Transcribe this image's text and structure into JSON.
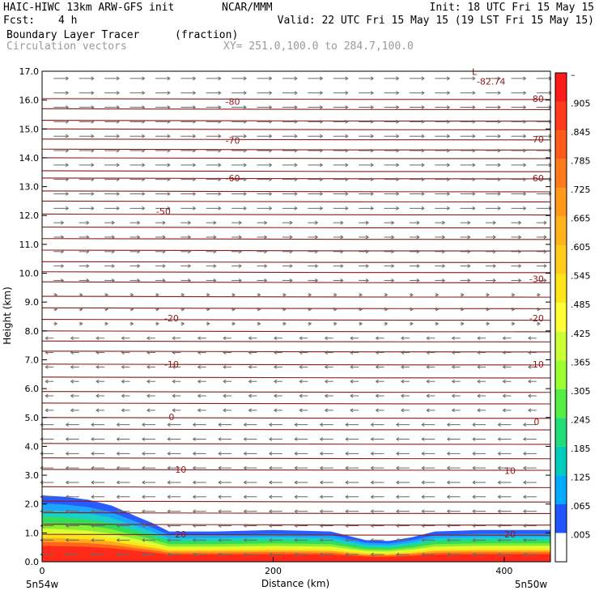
{
  "header": {
    "model": "HAIC-HIWC 13km ARW-GFS init",
    "org": "NCAR/MMM",
    "init": "Init: 18 UTC Fri 15 May 15",
    "fcst_label": "Fcst:",
    "fcst_value": "4 h",
    "valid": "Valid: 22 UTC Fri 15 May 15 (19 LST Fri 15 May 15)",
    "field": "Boundary Layer Tracer",
    "field_units": "(fraction)",
    "vectors": "Circulation vectors",
    "xy": "XY= 251.0,100.0 to 284.7,100.0"
  },
  "chart_data": {
    "type": "heatmap",
    "ylabel": "Height (km)",
    "xlabel": "Distance (km)",
    "ylim": [
      0,
      17
    ],
    "xlim": [
      0,
      440
    ],
    "yticks": [
      "0.0",
      "1.0",
      "2.0",
      "3.0",
      "4.0",
      "5.0",
      "6.0",
      "7.0",
      "8.0",
      "9.0",
      "10.0",
      "11.0",
      "12.0",
      "13.0",
      "14.0",
      "15.0",
      "16.0",
      "17.0"
    ],
    "xticks": [
      0,
      200,
      400
    ],
    "x_end_labels": {
      "left": "5n54w",
      "right": "5n50w"
    },
    "colorbar": {
      "labels": [
        "–",
        ".905",
        ".845",
        ".785",
        ".725",
        ".665",
        ".605",
        ".545",
        ".485",
        ".425",
        ".365",
        ".305",
        ".245",
        ".185",
        ".125",
        ".065",
        ".005"
      ],
      "colors": [
        "#ff1a1a",
        "#ff3b1a",
        "#ff5a1a",
        "#ff7a1a",
        "#ff991a",
        "#ffb31a",
        "#ffcc1a",
        "#ffe61a",
        "#ffff33",
        "#ccff33",
        "#99ff33",
        "#55ee44",
        "#22dd77",
        "#00ccbb",
        "#00aaff",
        "#2255ff",
        "#ffffff"
      ]
    },
    "temperature_contours": {
      "line_color": "#8b1a1a",
      "labels": [
        {
          "value": "-80",
          "x": 165,
          "y": 15.95
        },
        {
          "value": "-80",
          "x": 428,
          "y": 16.05
        },
        {
          "value": "-70",
          "x": 165,
          "y": 14.6
        },
        {
          "value": "-70",
          "x": 428,
          "y": 14.65
        },
        {
          "value": "-60",
          "x": 165,
          "y": 13.3
        },
        {
          "value": "-60",
          "x": 428,
          "y": 13.3
        },
        {
          "value": "-50",
          "x": 105,
          "y": 12.15
        },
        {
          "value": "-30",
          "x": 428,
          "y": 9.8
        },
        {
          "value": "-20",
          "x": 112,
          "y": 8.45
        },
        {
          "value": "-20",
          "x": 428,
          "y": 8.45
        },
        {
          "value": "-10",
          "x": 112,
          "y": 6.85
        },
        {
          "value": "-10",
          "x": 428,
          "y": 6.85
        },
        {
          "value": "0",
          "x": 112,
          "y": 5.02
        },
        {
          "value": "0",
          "x": 428,
          "y": 4.85
        },
        {
          "value": "10",
          "x": 120,
          "y": 3.2
        },
        {
          "value": "10",
          "x": 405,
          "y": 3.15
        },
        {
          "value": "20",
          "x": 120,
          "y": 0.95
        },
        {
          "value": "20",
          "x": 405,
          "y": 0.95
        }
      ],
      "min_label": {
        "value": "-82.74",
        "x": 372,
        "y": 16.65,
        "symbol": "L"
      }
    },
    "tracer_top_km": [
      [
        0,
        2.3
      ],
      [
        20,
        2.25
      ],
      [
        40,
        2.15
      ],
      [
        60,
        1.95
      ],
      [
        80,
        1.6
      ],
      [
        95,
        1.35
      ],
      [
        110,
        1.05
      ],
      [
        150,
        1.05
      ],
      [
        200,
        1.1
      ],
      [
        250,
        1.05
      ],
      [
        280,
        0.75
      ],
      [
        300,
        0.72
      ],
      [
        320,
        0.85
      ],
      [
        340,
        1.05
      ],
      [
        380,
        1.1
      ],
      [
        440,
        1.1
      ]
    ]
  }
}
